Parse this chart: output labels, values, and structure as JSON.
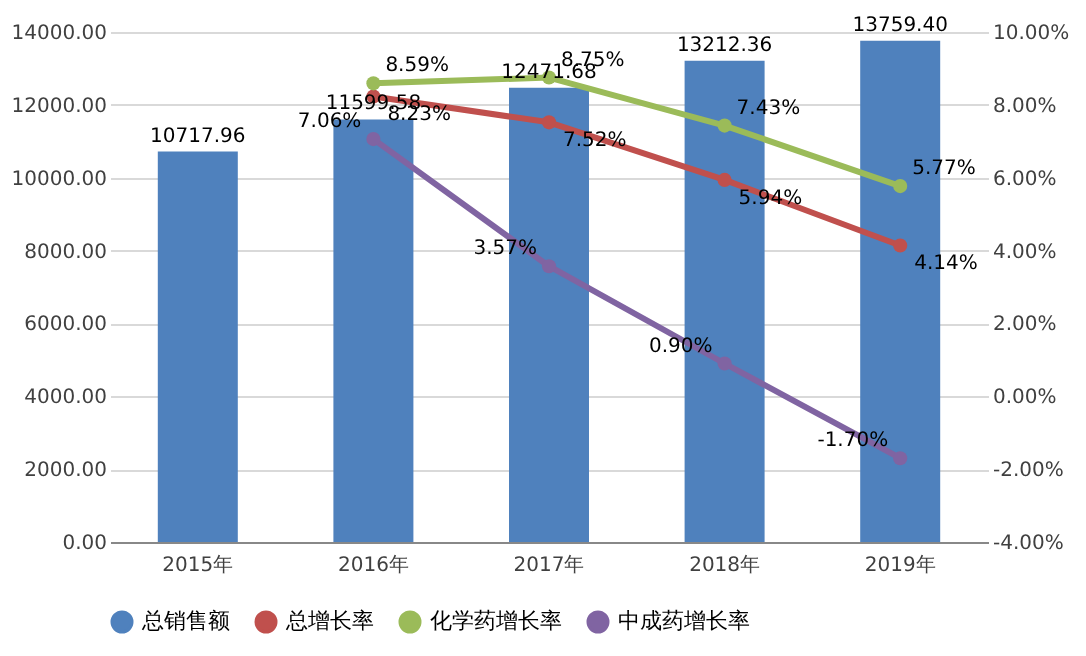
{
  "chart_data": {
    "type": "bar",
    "categories": [
      "2015年",
      "2016年",
      "2017年",
      "2018年",
      "2019年"
    ],
    "series": [
      {
        "name": "总销售额",
        "color": "#4f81bd",
        "values": [
          10717.96,
          11599.58,
          12471.68,
          13212.36,
          13759.4
        ],
        "value_labels": [
          "10717.96",
          "11599.58",
          "12471.68",
          "13212.36",
          "13759.40"
        ]
      },
      {
        "name": "总增长率",
        "type": "line",
        "axis": "y2",
        "color": "#c0504d",
        "values": [
          null,
          8.23,
          7.52,
          5.94,
          4.14
        ],
        "value_labels": [
          null,
          "8.23%",
          "7.52%",
          "5.94%",
          "4.14%"
        ]
      },
      {
        "name": "化学药增长率",
        "type": "line",
        "axis": "y2",
        "color": "#9bbb59",
        "values": [
          null,
          8.59,
          8.75,
          7.43,
          5.77
        ],
        "value_labels": [
          null,
          "8.59%",
          "8.75%",
          "7.43%",
          "5.77%"
        ]
      },
      {
        "name": "中成药增长率",
        "type": "line",
        "axis": "y2",
        "color": "#8064a2",
        "values": [
          null,
          7.06,
          3.57,
          0.9,
          -1.7
        ],
        "value_labels": [
          null,
          "7.06%",
          "3.57%",
          "0.90%",
          "-1.70%"
        ]
      }
    ],
    "ylim": [
      0,
      14000
    ],
    "yticks": [
      {
        "value": 0,
        "label": "0.00"
      },
      {
        "value": 2000,
        "label": "2000.00"
      },
      {
        "value": 4000,
        "label": "4000.00"
      },
      {
        "value": 6000,
        "label": "6000.00"
      },
      {
        "value": 8000,
        "label": "8000.00"
      },
      {
        "value": 10000,
        "label": "10000.00"
      },
      {
        "value": 12000,
        "label": "12000.00"
      },
      {
        "value": 14000,
        "label": "14000.00"
      }
    ],
    "y2lim": [
      -4,
      10
    ],
    "y2ticks": [
      {
        "value": -4,
        "label": "-4.00%"
      },
      {
        "value": -2,
        "label": "-2.00%"
      },
      {
        "value": 0,
        "label": "0.00%"
      },
      {
        "value": 2,
        "label": "2.00%"
      },
      {
        "value": 4,
        "label": "4.00%"
      },
      {
        "value": 6,
        "label": "6.00%"
      },
      {
        "value": 8,
        "label": "8.00%"
      },
      {
        "value": 10,
        "label": "10.00%"
      }
    ],
    "grid": "y",
    "legend": "bottom",
    "marker": "circle",
    "line_style": "solid"
  }
}
